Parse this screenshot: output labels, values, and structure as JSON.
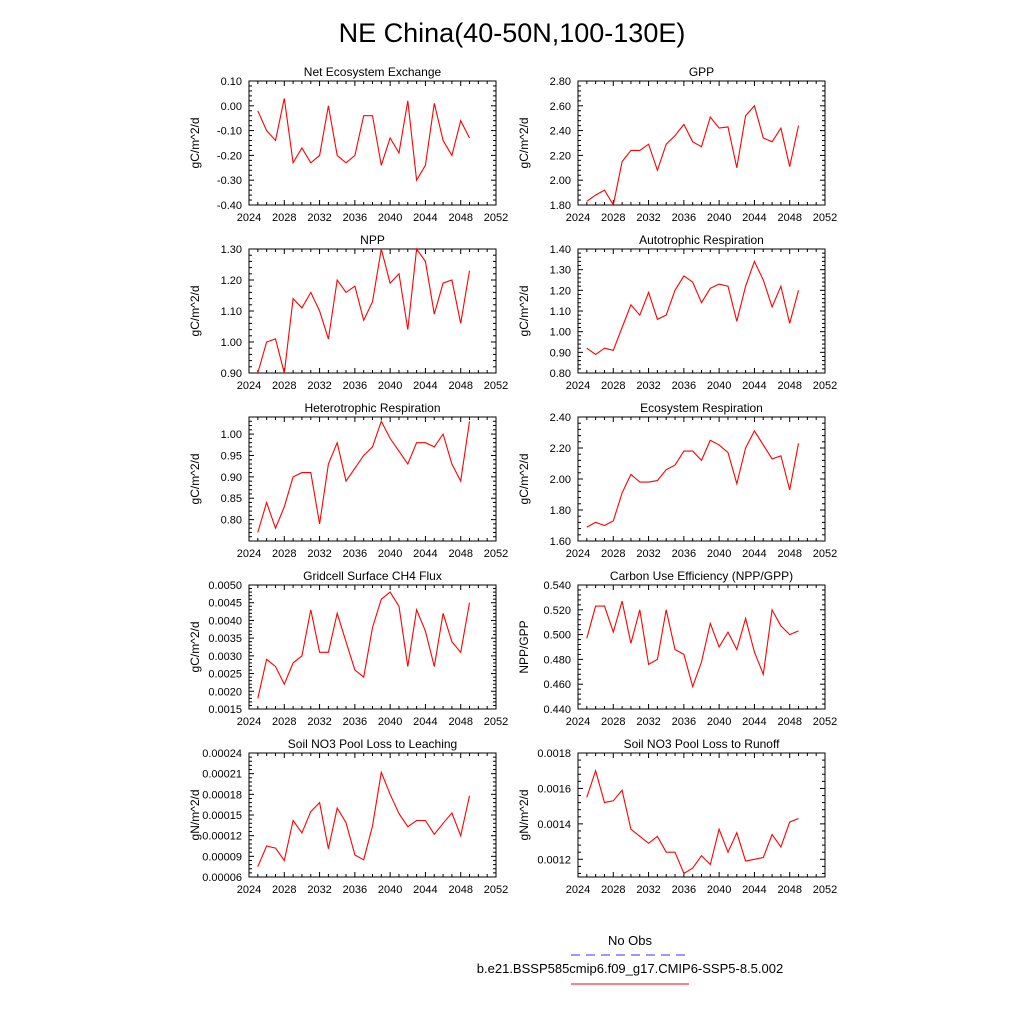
{
  "figure": {
    "title": "NE China(40-50N,100-130E)",
    "line_color": "#ff0000",
    "obs_color": "#3333ff",
    "legend": {
      "obs_label": "No Obs",
      "model_label": "b.e21.BSSP585cmip6.f09_g17.CMIP6-SSP5-8.5.002"
    }
  },
  "chart_data": [
    {
      "type": "line",
      "title": "Net Ecosystem Exchange",
      "ylabel": "gC/m^2/d",
      "xlim": [
        2024,
        2052
      ],
      "ylim": [
        -0.4,
        0.1
      ],
      "xticks": [
        "2024",
        "2028",
        "2032",
        "2036",
        "2040",
        "2044",
        "2048",
        "2052"
      ],
      "yticks": [
        "-0.40",
        "-0.30",
        "-0.20",
        "-0.10",
        "0.00",
        "0.10"
      ],
      "x": [
        2025,
        2026,
        2027,
        2028,
        2029,
        2030,
        2031,
        2032,
        2033,
        2034,
        2035,
        2036,
        2037,
        2038,
        2039,
        2040,
        2041,
        2042,
        2043,
        2044,
        2045,
        2046,
        2047,
        2048,
        2049
      ],
      "values": [
        -0.02,
        -0.1,
        -0.14,
        0.03,
        -0.23,
        -0.17,
        -0.23,
        -0.2,
        0.0,
        -0.2,
        -0.23,
        -0.2,
        -0.04,
        -0.04,
        -0.24,
        -0.13,
        -0.19,
        0.02,
        -0.3,
        -0.24,
        0.01,
        -0.14,
        -0.2,
        -0.06,
        -0.13
      ]
    },
    {
      "type": "line",
      "title": "GPP",
      "ylabel": "gC/m^2/d",
      "xlim": [
        2024,
        2052
      ],
      "ylim": [
        1.8,
        2.8
      ],
      "xticks": [
        "2024",
        "2028",
        "2032",
        "2036",
        "2040",
        "2044",
        "2048",
        "2052"
      ],
      "yticks": [
        "1.80",
        "2.00",
        "2.20",
        "2.40",
        "2.60",
        "2.80"
      ],
      "x": [
        2025,
        2026,
        2027,
        2028,
        2029,
        2030,
        2031,
        2032,
        2033,
        2034,
        2035,
        2036,
        2037,
        2038,
        2039,
        2040,
        2041,
        2042,
        2043,
        2044,
        2045,
        2046,
        2047,
        2048,
        2049
      ],
      "values": [
        1.83,
        1.88,
        1.92,
        1.8,
        2.15,
        2.24,
        2.24,
        2.29,
        2.08,
        2.29,
        2.36,
        2.45,
        2.31,
        2.27,
        2.51,
        2.42,
        2.43,
        2.1,
        2.52,
        2.6,
        2.34,
        2.31,
        2.42,
        2.11,
        2.44
      ]
    },
    {
      "type": "line",
      "title": "NPP",
      "ylabel": "gC/m^2/d",
      "xlim": [
        2024,
        2052
      ],
      "ylim": [
        0.9,
        1.3
      ],
      "xticks": [
        "2024",
        "2028",
        "2032",
        "2036",
        "2040",
        "2044",
        "2048",
        "2052"
      ],
      "yticks": [
        "0.90",
        "1.00",
        "1.10",
        "1.20",
        "1.30"
      ],
      "x": [
        2025,
        2026,
        2027,
        2028,
        2029,
        2030,
        2031,
        2032,
        2033,
        2034,
        2035,
        2036,
        2037,
        2038,
        2039,
        2040,
        2041,
        2042,
        2043,
        2044,
        2045,
        2046,
        2047,
        2048,
        2049
      ],
      "values": [
        0.9,
        1.0,
        1.01,
        0.9,
        1.14,
        1.11,
        1.16,
        1.1,
        1.01,
        1.2,
        1.16,
        1.18,
        1.07,
        1.13,
        1.3,
        1.19,
        1.22,
        1.04,
        1.3,
        1.26,
        1.09,
        1.19,
        1.2,
        1.06,
        1.23
      ]
    },
    {
      "type": "line",
      "title": "Autotrophic Respiration",
      "ylabel": "gC/m^2/d",
      "xlim": [
        2024,
        2052
      ],
      "ylim": [
        0.8,
        1.4
      ],
      "xticks": [
        "2024",
        "2028",
        "2032",
        "2036",
        "2040",
        "2044",
        "2048",
        "2052"
      ],
      "yticks": [
        "0.80",
        "0.90",
        "1.00",
        "1.10",
        "1.20",
        "1.30",
        "1.40"
      ],
      "x": [
        2025,
        2026,
        2027,
        2028,
        2029,
        2030,
        2031,
        2032,
        2033,
        2034,
        2035,
        2036,
        2037,
        2038,
        2039,
        2040,
        2041,
        2042,
        2043,
        2044,
        2045,
        2046,
        2047,
        2048,
        2049
      ],
      "values": [
        0.92,
        0.89,
        0.92,
        0.91,
        1.02,
        1.13,
        1.08,
        1.19,
        1.06,
        1.08,
        1.2,
        1.27,
        1.24,
        1.14,
        1.21,
        1.23,
        1.22,
        1.05,
        1.22,
        1.34,
        1.25,
        1.12,
        1.22,
        1.04,
        1.2
      ]
    },
    {
      "type": "line",
      "title": "Heterotrophic Respiration",
      "ylabel": "gC/m^2/d",
      "xlim": [
        2024,
        2052
      ],
      "ylim": [
        0.75,
        1.04
      ],
      "xticks": [
        "2024",
        "2028",
        "2032",
        "2036",
        "2040",
        "2044",
        "2048",
        "2052"
      ],
      "yticks": [
        "0.80",
        "0.85",
        "0.90",
        "0.95",
        "1.00"
      ],
      "x": [
        2025,
        2026,
        2027,
        2028,
        2029,
        2030,
        2031,
        2032,
        2033,
        2034,
        2035,
        2036,
        2037,
        2038,
        2039,
        2040,
        2041,
        2042,
        2043,
        2044,
        2045,
        2046,
        2047,
        2048,
        2049
      ],
      "values": [
        0.77,
        0.84,
        0.78,
        0.83,
        0.9,
        0.91,
        0.91,
        0.79,
        0.93,
        0.98,
        0.89,
        0.92,
        0.95,
        0.97,
        1.03,
        0.99,
        0.96,
        0.93,
        0.98,
        0.98,
        0.97,
        1.0,
        0.93,
        0.89,
        1.03
      ]
    },
    {
      "type": "line",
      "title": "Ecosystem Respiration",
      "ylabel": "gC/m^2/d",
      "xlim": [
        2024,
        2052
      ],
      "ylim": [
        1.6,
        2.4
      ],
      "xticks": [
        "2024",
        "2028",
        "2032",
        "2036",
        "2040",
        "2044",
        "2048",
        "2052"
      ],
      "yticks": [
        "1.60",
        "1.80",
        "2.00",
        "2.20",
        "2.40"
      ],
      "x": [
        2025,
        2026,
        2027,
        2028,
        2029,
        2030,
        2031,
        2032,
        2033,
        2034,
        2035,
        2036,
        2037,
        2038,
        2039,
        2040,
        2041,
        2042,
        2043,
        2044,
        2045,
        2046,
        2047,
        2048,
        2049
      ],
      "values": [
        1.69,
        1.72,
        1.7,
        1.73,
        1.91,
        2.03,
        1.98,
        1.98,
        1.99,
        2.06,
        2.09,
        2.18,
        2.18,
        2.12,
        2.25,
        2.22,
        2.17,
        1.97,
        2.2,
        2.31,
        2.22,
        2.13,
        2.15,
        1.93,
        2.23
      ]
    },
    {
      "type": "line",
      "title": "Gridcell Surface CH4 Flux",
      "ylabel": "gC/m^2/d",
      "xlim": [
        2024,
        2052
      ],
      "ylim": [
        0.0015,
        0.005
      ],
      "xticks": [
        "2024",
        "2028",
        "2032",
        "2036",
        "2040",
        "2044",
        "2048",
        "2052"
      ],
      "yticks": [
        "0.0015",
        "0.0020",
        "0.0025",
        "0.0030",
        "0.0035",
        "0.0040",
        "0.0045",
        "0.0050"
      ],
      "x": [
        2025,
        2026,
        2027,
        2028,
        2029,
        2030,
        2031,
        2032,
        2033,
        2034,
        2035,
        2036,
        2037,
        2038,
        2039,
        2040,
        2041,
        2042,
        2043,
        2044,
        2045,
        2046,
        2047,
        2048,
        2049
      ],
      "values": [
        0.0018,
        0.0029,
        0.0027,
        0.0022,
        0.0028,
        0.003,
        0.0043,
        0.0031,
        0.0031,
        0.0042,
        0.0034,
        0.0026,
        0.0024,
        0.0038,
        0.0046,
        0.0048,
        0.0044,
        0.0027,
        0.0043,
        0.0037,
        0.0027,
        0.0042,
        0.0034,
        0.0031,
        0.0045
      ]
    },
    {
      "type": "line",
      "title": "Carbon Use Efficiency (NPP/GPP)",
      "ylabel": "NPP/GPP",
      "xlim": [
        2024,
        2052
      ],
      "ylim": [
        0.44,
        0.54
      ],
      "xticks": [
        "2024",
        "2028",
        "2032",
        "2036",
        "2040",
        "2044",
        "2048",
        "2052"
      ],
      "yticks": [
        "0.440",
        "0.460",
        "0.480",
        "0.500",
        "0.520",
        "0.540"
      ],
      "x": [
        2025,
        2026,
        2027,
        2028,
        2029,
        2030,
        2031,
        2032,
        2033,
        2034,
        2035,
        2036,
        2037,
        2038,
        2039,
        2040,
        2041,
        2042,
        2043,
        2044,
        2045,
        2046,
        2047,
        2048,
        2049
      ],
      "values": [
        0.497,
        0.523,
        0.523,
        0.502,
        0.527,
        0.493,
        0.52,
        0.476,
        0.48,
        0.52,
        0.488,
        0.484,
        0.458,
        0.478,
        0.509,
        0.49,
        0.502,
        0.488,
        0.513,
        0.486,
        0.468,
        0.52,
        0.507,
        0.5,
        0.503
      ]
    },
    {
      "type": "line",
      "title": "Soil NO3 Pool Loss to Leaching",
      "ylabel": "gN/m^2/d",
      "xlim": [
        2024,
        2052
      ],
      "ylim": [
        6e-05,
        0.00024
      ],
      "xticks": [
        "2024",
        "2028",
        "2032",
        "2036",
        "2040",
        "2044",
        "2048",
        "2052"
      ],
      "yticks": [
        "0.00006",
        "0.00009",
        "0.00012",
        "0.00015",
        "0.00018",
        "0.00021",
        "0.00024"
      ],
      "x": [
        2025,
        2026,
        2027,
        2028,
        2029,
        2030,
        2031,
        2032,
        2033,
        2034,
        2035,
        2036,
        2037,
        2038,
        2039,
        2040,
        2041,
        2042,
        2043,
        2044,
        2045,
        2046,
        2047,
        2048,
        2049
      ],
      "values": [
        7.5e-05,
        0.000105,
        0.000102,
        8.4e-05,
        0.000142,
        0.000124,
        0.000155,
        0.000168,
        0.000101,
        0.00016,
        0.000139,
        9.2e-05,
        8.5e-05,
        0.000134,
        0.000212,
        0.00018,
        0.000152,
        0.000133,
        0.000142,
        0.000142,
        0.000122,
        0.000138,
        0.000153,
        0.00012,
        0.000178
      ]
    },
    {
      "type": "line",
      "title": "Soil NO3 Pool Loss to Runoff",
      "ylabel": "gN/m^2/d",
      "xlim": [
        2024,
        2052
      ],
      "ylim": [
        0.0011,
        0.0018
      ],
      "xticks": [
        "2024",
        "2028",
        "2032",
        "2036",
        "2040",
        "2044",
        "2048",
        "2052"
      ],
      "yticks": [
        "0.0012",
        "0.0014",
        "0.0016",
        "0.0018"
      ],
      "x": [
        2025,
        2026,
        2027,
        2028,
        2029,
        2030,
        2031,
        2032,
        2033,
        2034,
        2035,
        2036,
        2037,
        2038,
        2039,
        2040,
        2041,
        2042,
        2043,
        2044,
        2045,
        2046,
        2047,
        2048,
        2049
      ],
      "values": [
        0.00155,
        0.0017,
        0.00152,
        0.00153,
        0.00159,
        0.00137,
        0.00133,
        0.00129,
        0.00133,
        0.00124,
        0.00124,
        0.00112,
        0.00115,
        0.00122,
        0.00117,
        0.00137,
        0.00124,
        0.00135,
        0.00119,
        0.0012,
        0.00121,
        0.00134,
        0.00127,
        0.00141,
        0.00143
      ]
    }
  ]
}
